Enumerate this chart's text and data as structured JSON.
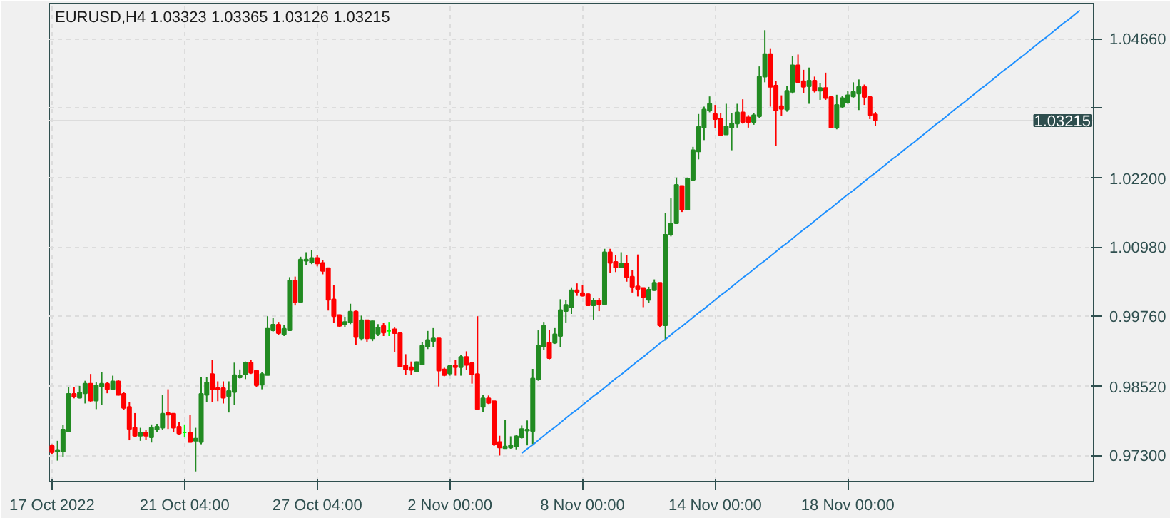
{
  "chart_data": {
    "type": "candlestick",
    "title": "EURUSD,H4 1.03323 1.03365 1.03126 1.03215",
    "categories": [
      "17 Oct 2022",
      null,
      null,
      null,
      null,
      null,
      null,
      null,
      null,
      null,
      null,
      null,
      null,
      null,
      null,
      null,
      null,
      null,
      null,
      null,
      null,
      null,
      null,
      null,
      "21 Oct 04:00",
      null,
      null,
      null,
      null,
      null,
      null,
      null,
      null,
      null,
      null,
      null,
      null,
      null,
      null,
      null,
      null,
      null,
      null,
      null,
      null,
      null,
      null,
      null,
      "27 Oct 04:00",
      null,
      null,
      null,
      null,
      null,
      null,
      null,
      null,
      null,
      null,
      null,
      null,
      null,
      null,
      null,
      null,
      null,
      null,
      null,
      null,
      null,
      null,
      null,
      "2 Nov 00:00",
      null,
      null,
      null,
      null,
      null,
      null,
      null,
      null,
      null,
      null,
      null,
      null,
      null,
      null,
      null,
      null,
      null,
      null,
      null,
      null,
      null,
      null,
      null,
      "8 Nov 00:00",
      null,
      null,
      null,
      null,
      null,
      null,
      null,
      null,
      null,
      null,
      null,
      null,
      null,
      null,
      null,
      null,
      null,
      null,
      null,
      null,
      null,
      null,
      null,
      "14 Nov 00:00",
      null,
      null,
      null,
      null,
      null,
      null,
      null,
      null,
      null,
      null,
      null,
      null,
      null,
      null,
      null,
      null,
      null,
      null,
      null,
      null,
      null,
      null,
      null,
      "18 Nov 00:00",
      null,
      null,
      null,
      null,
      null,
      null,
      null,
      null,
      null,
      null,
      null,
      null,
      null,
      null,
      null,
      null,
      null,
      null,
      null,
      null,
      null,
      null,
      null,
      null,
      null,
      null,
      null,
      null,
      null,
      null,
      null,
      null,
      null,
      null,
      null,
      null,
      null,
      null,
      null,
      null,
      null,
      null,
      null,
      null
    ],
    "ohlc": [
      [
        0.9747,
        0.975,
        0.9733,
        0.9736
      ],
      [
        0.9737,
        0.9756,
        0.9721,
        0.974
      ],
      [
        0.9737,
        0.9784,
        0.9727,
        0.9776
      ],
      [
        0.9773,
        0.9851,
        0.9771,
        0.9839
      ],
      [
        0.9839,
        0.9851,
        0.9831,
        0.9834
      ],
      [
        0.9832,
        0.9853,
        0.9831,
        0.9841
      ],
      [
        0.984,
        0.9862,
        0.9822,
        0.9857
      ],
      [
        0.9857,
        0.9874,
        0.9824,
        0.9827
      ],
      [
        0.9827,
        0.9859,
        0.9812,
        0.9854
      ],
      [
        0.9852,
        0.9877,
        0.982,
        0.9857
      ],
      [
        0.9857,
        0.986,
        0.984,
        0.9847
      ],
      [
        0.9847,
        0.9871,
        0.9846,
        0.9861
      ],
      [
        0.9861,
        0.9864,
        0.9836,
        0.9837
      ],
      [
        0.9839,
        0.9842,
        0.9811,
        0.9814
      ],
      [
        0.9816,
        0.9824,
        0.9757,
        0.9777
      ],
      [
        0.9779,
        0.9805,
        0.9763,
        0.9765
      ],
      [
        0.9765,
        0.9779,
        0.9756,
        0.9771
      ],
      [
        0.9771,
        0.9776,
        0.9758,
        0.9765
      ],
      [
        0.9762,
        0.9785,
        0.9753,
        0.9779
      ],
      [
        0.9776,
        0.9786,
        0.9771,
        0.9781
      ],
      [
        0.9779,
        0.9837,
        0.9775,
        0.9804
      ],
      [
        0.9805,
        0.9847,
        0.9777,
        0.9802
      ],
      [
        0.9804,
        0.9804,
        0.9772,
        0.9779
      ],
      [
        0.9781,
        0.9789,
        0.9767,
        0.9769
      ],
      [
        0.9771,
        0.9785,
        0.9762,
        0.9771
      ],
      [
        0.9771,
        0.9802,
        0.9753,
        0.9754
      ],
      [
        0.9756,
        0.9779,
        0.9702,
        0.976
      ],
      [
        0.9754,
        0.9869,
        0.975,
        0.9839
      ],
      [
        0.9837,
        0.9868,
        0.9825,
        0.9859
      ],
      [
        0.9874,
        0.9899,
        0.9824,
        0.9847
      ],
      [
        0.9849,
        0.9861,
        0.9826,
        0.9847
      ],
      [
        0.9849,
        0.9861,
        0.9822,
        0.9832
      ],
      [
        0.9835,
        0.9861,
        0.9806,
        0.9844
      ],
      [
        0.9842,
        0.9894,
        0.982,
        0.9872
      ],
      [
        0.9868,
        0.9882,
        0.9866,
        0.9871
      ],
      [
        0.9873,
        0.9896,
        0.9865,
        0.9894
      ],
      [
        0.9894,
        0.9899,
        0.9874,
        0.9876
      ],
      [
        0.988,
        0.9881,
        0.9851,
        0.9854
      ],
      [
        0.9855,
        0.9877,
        0.9847,
        0.9874
      ],
      [
        0.9872,
        0.9976,
        0.9872,
        0.9954
      ],
      [
        0.9951,
        0.9973,
        0.9949,
        0.9961
      ],
      [
        0.9961,
        0.9966,
        0.9943,
        0.9946
      ],
      [
        0.9944,
        0.9961,
        0.9941,
        0.9954
      ],
      [
        0.9951,
        1.0045,
        0.9951,
        1.0039
      ],
      [
        1.0039,
        1.0046,
        0.9995,
        1.0001
      ],
      [
        1.0001,
        1.0081,
        0.9999,
        1.0076
      ],
      [
        1.0074,
        1.0089,
        1.0066,
        1.0076
      ],
      [
        1.0071,
        1.0093,
        1.0068,
        1.0079
      ],
      [
        1.0079,
        1.0084,
        1.0064,
        1.0069
      ],
      [
        1.007,
        1.0075,
        1.005,
        1.0056
      ],
      [
        1.0061,
        1.0061,
        0.9986,
        1.0005
      ],
      [
        1.0006,
        1.0031,
        0.9964,
        0.9976
      ],
      [
        0.9978,
        0.9979,
        0.9957,
        0.9959
      ],
      [
        0.9961,
        0.9975,
        0.9957,
        0.9966
      ],
      [
        0.9965,
        0.9998,
        0.9962,
        0.9984
      ],
      [
        0.9984,
        0.9986,
        0.9925,
        0.9939
      ],
      [
        0.9937,
        0.9977,
        0.9933,
        0.9969
      ],
      [
        0.9969,
        0.9969,
        0.9931,
        0.9937
      ],
      [
        0.9937,
        0.9968,
        0.9932,
        0.9967
      ],
      [
        0.9945,
        0.9962,
        0.9941,
        0.9956
      ],
      [
        0.9959,
        0.9964,
        0.9941,
        0.9947
      ],
      [
        0.995,
        0.9966,
        0.9941,
        0.995
      ],
      [
        0.9953,
        0.9956,
        0.9912,
        0.9946
      ],
      [
        0.9946,
        0.9946,
        0.9887,
        0.9887
      ],
      [
        0.9889,
        0.9909,
        0.9872,
        0.9882
      ],
      [
        0.9886,
        0.9896,
        0.9872,
        0.9881
      ],
      [
        0.9879,
        0.9896,
        0.9879,
        0.9895
      ],
      [
        0.9891,
        0.993,
        0.9891,
        0.9924
      ],
      [
        0.9922,
        0.995,
        0.9918,
        0.9934
      ],
      [
        0.9932,
        0.9955,
        0.9921,
        0.9937
      ],
      [
        0.9937,
        0.9937,
        0.9852,
        0.988
      ],
      [
        0.9882,
        0.9885,
        0.987,
        0.9872
      ],
      [
        0.9875,
        0.9889,
        0.9871,
        0.9888
      ],
      [
        0.9889,
        0.9899,
        0.9871,
        0.9886
      ],
      [
        0.9886,
        0.9907,
        0.9871,
        0.9904
      ],
      [
        0.9904,
        0.9914,
        0.9881,
        0.989
      ],
      [
        0.9893,
        0.9893,
        0.9857,
        0.9873
      ],
      [
        0.9874,
        0.9976,
        0.9812,
        0.9812
      ],
      [
        0.9816,
        0.9837,
        0.9807,
        0.9831
      ],
      [
        0.9831,
        0.9836,
        0.9821,
        0.9823
      ],
      [
        0.9826,
        0.9826,
        0.9747,
        0.975
      ],
      [
        0.9754,
        0.9765,
        0.973,
        0.9744
      ],
      [
        0.9743,
        0.9793,
        0.9742,
        0.9746
      ],
      [
        0.9744,
        0.9764,
        0.9742,
        0.9748
      ],
      [
        0.9746,
        0.9767,
        0.9741,
        0.9764
      ],
      [
        0.9762,
        0.9783,
        0.976,
        0.9777
      ],
      [
        0.9774,
        0.9792,
        0.9748,
        0.9776
      ],
      [
        0.9773,
        0.9883,
        0.975,
        0.9866
      ],
      [
        0.9864,
        0.9951,
        0.9862,
        0.9924
      ],
      [
        0.9922,
        0.9966,
        0.9917,
        0.9959
      ],
      [
        0.9929,
        0.9952,
        0.99,
        0.9902
      ],
      [
        0.9929,
        0.9955,
        0.9927,
        0.9944
      ],
      [
        0.9941,
        1.0006,
        0.9922,
        0.9987
      ],
      [
        0.9985,
        1.0004,
        0.9965,
        0.9996
      ],
      [
        0.9992,
        1.0027,
        0.998,
        1.0022
      ],
      [
        1.0022,
        1.0034,
        1.0012,
        1.0019
      ],
      [
        1.0017,
        1.0031,
        1.0011,
        1.0012
      ],
      [
        1.0015,
        1.0016,
        0.9995,
        0.9995
      ],
      [
        0.9995,
        1.0009,
        0.997,
        1.0004
      ],
      [
        1.0004,
        1.0009,
        0.9985,
        0.9997
      ],
      [
        0.9997,
        1.0095,
        0.9997,
        1.0089
      ],
      [
        1.0089,
        1.0095,
        1.0052,
        1.007
      ],
      [
        1.0072,
        1.0084,
        1.0054,
        1.0062
      ],
      [
        1.0062,
        1.0089,
        1.0062,
        1.0069
      ],
      [
        1.0069,
        1.0084,
        1.0037,
        1.0045
      ],
      [
        1.0046,
        1.0057,
        1.0018,
        1.0028
      ],
      [
        1.0029,
        1.0085,
        1.0011,
        1.0024
      ],
      [
        1.0026,
        1.0026,
        0.9992,
        1.001
      ],
      [
        1.0005,
        1.0028,
        0.9999,
        1.0023
      ],
      [
        1.0022,
        1.0041,
        1.0021,
        1.0035
      ],
      [
        1.0035,
        1.0035,
        0.9956,
        0.996
      ],
      [
        0.996,
        1.0158,
        0.9933,
        1.012
      ],
      [
        1.012,
        1.0184,
        1.0117,
        1.014
      ],
      [
        1.014,
        1.0221,
        1.0139,
        1.0208
      ],
      [
        1.0206,
        1.0206,
        1.016,
        1.0164
      ],
      [
        1.0164,
        1.0221,
        1.0164,
        1.0219
      ],
      [
        1.0217,
        1.0275,
        1.0215,
        1.0269
      ],
      [
        1.0267,
        1.0333,
        1.0253,
        1.031
      ],
      [
        1.0309,
        1.0346,
        1.0287,
        1.0341
      ],
      [
        1.0339,
        1.0364,
        1.0336,
        1.0351
      ],
      [
        1.0333,
        1.0349,
        1.0308,
        1.0324
      ],
      [
        1.0325,
        1.0334,
        1.0294,
        1.0296
      ],
      [
        1.0297,
        1.0351,
        1.0297,
        1.0311
      ],
      [
        1.0309,
        1.0334,
        1.0269,
        1.0316
      ],
      [
        1.0316,
        1.0351,
        1.0309,
        1.0336
      ],
      [
        1.0336,
        1.0359,
        1.0316,
        1.0319
      ],
      [
        1.0327,
        1.0331,
        1.0309,
        1.0319
      ],
      [
        1.0319,
        1.0334,
        1.0314,
        1.0331
      ],
      [
        1.0329,
        1.0417,
        1.0326,
        1.0399
      ],
      [
        1.0399,
        1.0481,
        1.0389,
        1.0439
      ],
      [
        1.0439,
        1.0449,
        1.0346,
        1.0381
      ],
      [
        1.0383,
        1.0391,
        1.0277,
        1.0339
      ],
      [
        1.0347,
        1.0366,
        1.0329,
        1.0342
      ],
      [
        1.0341,
        1.0383,
        1.0337,
        1.0374
      ],
      [
        1.0372,
        1.0436,
        1.0369,
        1.0419
      ],
      [
        1.0419,
        1.0438,
        1.0387,
        1.0389
      ],
      [
        1.0391,
        1.0411,
        1.037,
        1.0381
      ],
      [
        1.0382,
        1.0415,
        1.0351,
        1.0392
      ],
      [
        1.0392,
        1.0399,
        1.0371,
        1.0374
      ],
      [
        1.0374,
        1.0387,
        1.0358,
        1.0379
      ],
      [
        1.0379,
        1.0406,
        1.0358,
        1.0361
      ],
      [
        1.0363,
        1.0363,
        1.0309,
        1.0309
      ],
      [
        1.0309,
        1.0367,
        1.0306,
        1.0349
      ],
      [
        1.0346,
        1.0365,
        1.0344,
        1.0361
      ],
      [
        1.0353,
        1.0374,
        1.0351,
        1.0366
      ],
      [
        1.0364,
        1.0389,
        1.0362,
        1.0372
      ],
      [
        1.0369,
        1.0394,
        1.034,
        1.0381
      ],
      [
        1.0381,
        1.0385,
        1.0349,
        1.0363
      ],
      [
        1.0363,
        1.0365,
        1.0324,
        1.0331
      ],
      [
        1.03323,
        1.03365,
        1.03126,
        1.03215
      ],
      null,
      null,
      null,
      null,
      null,
      null,
      null,
      null,
      null,
      null,
      null,
      null,
      null,
      null,
      null,
      null,
      null,
      null,
      null,
      null,
      null,
      null,
      null,
      null,
      null,
      null,
      null,
      null,
      null,
      null,
      null,
      null,
      null,
      null,
      null,
      null,
      null,
      null,
      null
    ],
    "colors": [
      "#ff0000",
      "#228b22",
      "#228b22",
      "#228b22",
      "#ff0000",
      "#228b22",
      "#228b22",
      "#ff0000",
      "#228b22",
      "#228b22",
      "#ff0000",
      "#228b22",
      "#ff0000",
      "#ff0000",
      "#ff0000",
      "#ff0000",
      "#228b22",
      "#ff0000",
      "#228b22",
      "#228b22",
      "#228b22",
      "#ff0000",
      "#ff0000",
      "#ff0000",
      "#00ff00",
      "#ff0000",
      "#228b22",
      "#228b22",
      "#228b22",
      "#ff0000",
      "#ff0000",
      "#ff0000",
      "#228b22",
      "#228b22",
      "#228b22",
      "#228b22",
      "#ff0000",
      "#ff0000",
      "#228b22",
      "#228b22",
      "#228b22",
      "#ff0000",
      "#228b22",
      "#228b22",
      "#ff0000",
      "#228b22",
      "#228b22",
      "#228b22",
      "#ff0000",
      "#ff0000",
      "#ff0000",
      "#ff0000",
      "#ff0000",
      "#228b22",
      "#228b22",
      "#ff0000",
      "#228b22",
      "#ff0000",
      "#228b22",
      "#228b22",
      "#ff0000",
      "#00ff00",
      "#ff0000",
      "#ff0000",
      "#ff0000",
      "#ff0000",
      "#228b22",
      "#228b22",
      "#228b22",
      "#228b22",
      "#ff0000",
      "#ff0000",
      "#228b22",
      "#ff0000",
      "#228b22",
      "#ff0000",
      "#ff0000",
      "#ff0000",
      "#228b22",
      "#ff0000",
      "#ff0000",
      "#ff0000",
      "#228b22",
      "#228b22",
      "#228b22",
      "#228b22",
      "#228b22",
      "#228b22",
      "#228b22",
      "#228b22",
      "#ff0000",
      "#228b22",
      "#228b22",
      "#228b22",
      "#228b22",
      "#ff0000",
      "#ff0000",
      "#ff0000",
      "#228b22",
      "#ff0000",
      "#228b22",
      "#ff0000",
      "#ff0000",
      "#228b22",
      "#ff0000",
      "#ff0000",
      "#ff0000",
      "#ff0000",
      "#228b22",
      "#228b22",
      "#ff0000",
      "#228b22",
      "#228b22",
      "#228b22",
      "#ff0000",
      "#228b22",
      "#228b22",
      "#228b22",
      "#228b22",
      "#228b22",
      "#ff0000",
      "#ff0000",
      "#228b22",
      "#228b22",
      "#228b22",
      "#ff0000",
      "#ff0000",
      "#228b22",
      "#228b22",
      "#228b22",
      "#ff0000",
      "#ff0000",
      "#ff0000",
      "#228b22",
      "#228b22",
      "#ff0000",
      "#ff0000",
      "#228b22",
      "#ff0000",
      "#228b22",
      "#ff0000",
      "#ff0000",
      "#228b22",
      "#228b22",
      "#228b22",
      "#228b22",
      "#228b22",
      "#ff0000",
      "#ff0000",
      "#ff0000",
      null,
      null,
      null,
      null,
      null,
      null,
      null,
      null,
      null,
      null,
      null,
      null,
      null,
      null,
      null,
      null,
      null,
      null,
      null,
      null,
      null,
      null,
      null,
      null,
      null,
      null,
      null,
      null,
      null,
      null,
      null,
      null,
      null,
      null,
      null,
      null,
      null,
      null,
      null
    ],
    "series": [
      {
        "type": "line",
        "color": "#1e90ff",
        "values": [
          null,
          null,
          null,
          null,
          null,
          null,
          null,
          null,
          null,
          null,
          null,
          null,
          null,
          null,
          null,
          null,
          null,
          null,
          null,
          null,
          null,
          null,
          null,
          null,
          null,
          null,
          null,
          null,
          null,
          null,
          null,
          null,
          null,
          null,
          null,
          null,
          null,
          null,
          null,
          null,
          null,
          null,
          null,
          null,
          null,
          null,
          null,
          null,
          null,
          null,
          null,
          null,
          null,
          null,
          null,
          null,
          null,
          null,
          null,
          null,
          null,
          null,
          null,
          null,
          null,
          null,
          null,
          null,
          null,
          null,
          null,
          null,
          null,
          null,
          null,
          null,
          null,
          null,
          null,
          null,
          null,
          null,
          null,
          null,
          null,
          0.9734,
          0.9742,
          0.9749,
          0.9757,
          0.9765,
          0.9773,
          0.978,
          0.9788,
          0.9796,
          0.9804,
          0.9811,
          0.9819,
          0.9827,
          0.9835,
          0.9842,
          0.985,
          0.9858,
          0.9866,
          0.9873,
          0.9881,
          0.9889,
          0.9897,
          0.9904,
          0.9912,
          0.992,
          0.9928,
          0.9935,
          0.9943,
          0.9951,
          0.9958,
          0.9966,
          0.9974,
          0.9982,
          0.9989,
          0.9997,
          1.0005,
          1.0013,
          1.002,
          1.0028,
          1.0036,
          1.0044,
          1.0051,
          1.0059,
          1.0067,
          1.0074,
          1.0082,
          1.009,
          1.0098,
          1.0105,
          1.0113,
          1.0121,
          1.0129,
          1.0136,
          1.0144,
          1.0152,
          1.016,
          1.0167,
          1.0175,
          1.0183,
          1.0191,
          1.0198,
          1.0206,
          1.0214,
          1.0222,
          1.0229,
          1.0237,
          1.0245,
          1.0253,
          1.026,
          1.0268,
          1.0276,
          1.0283,
          1.0291,
          1.0299,
          1.0307,
          1.0315,
          1.0322,
          1.033,
          1.0338,
          1.0346,
          1.0353,
          1.0361,
          1.0369,
          1.0377,
          1.0384,
          1.0392,
          1.04,
          1.0408,
          1.0415,
          1.0423,
          1.0431,
          1.0438,
          1.0446,
          1.0454,
          1.0462,
          1.0469,
          1.0477,
          1.0485,
          1.0493,
          1.05,
          1.0508,
          1.0516,
          null,
          null
        ]
      }
    ],
    "ylim": [
      0.9684,
      1.0528
    ],
    "yticks": [
      {
        "value": 0.973,
        "label": "0.97300"
      },
      {
        "value": 0.9852,
        "label": "0.98520"
      },
      {
        "value": 0.9976,
        "label": "0.99760"
      },
      {
        "value": 1.0098,
        "label": "1.00980"
      },
      {
        "value": 1.022,
        "label": "1.02200"
      },
      {
        "value": 1.0344,
        "label": null
      },
      {
        "value": 1.0466,
        "label": "1.04660"
      }
    ],
    "ref_lines": [
      {
        "axis": "y",
        "value": 1.03215,
        "label": "1.03215",
        "color": "#dcdcdc",
        "line_style": "solid"
      }
    ],
    "grid": true
  }
}
